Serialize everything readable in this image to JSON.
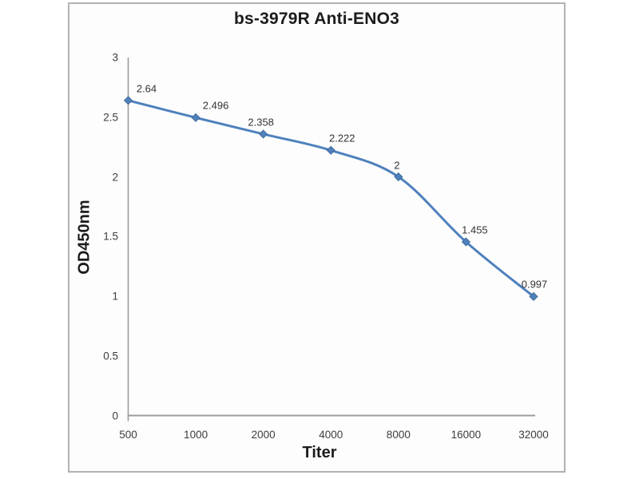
{
  "window": {
    "background": "#ffffff",
    "frame_border_color": "#b2b2b2"
  },
  "chart_data": {
    "type": "line",
    "title": "bs-3979R Anti-ENO3",
    "xlabel": "Titer",
    "ylabel": "OD450nm",
    "categories": [
      "500",
      "1000",
      "2000",
      "4000",
      "8000",
      "16000",
      "32000"
    ],
    "series": [
      {
        "name": "OD450nm",
        "values": [
          2.64,
          2.496,
          2.358,
          2.222,
          2,
          1.455,
          0.997
        ],
        "point_labels": [
          "2.64",
          "2.496",
          "2.358",
          "2.222",
          "2",
          "1.455",
          "0.997"
        ],
        "color": "#4f81bd",
        "marker": "diamond",
        "smooth": true
      }
    ],
    "y_tick_labels": [
      "3",
      "2.5",
      "2",
      "1.5",
      "1",
      "0.5",
      "0"
    ],
    "y_tick_values": [
      3,
      2.5,
      2,
      1.5,
      1,
      0.5,
      0
    ],
    "ylim": [
      0,
      3
    ],
    "grid": false,
    "legend_position": "none",
    "axis_color": "#9c9c9c",
    "tick_text_color": "#3d3d3d",
    "data_label_color": "#333333"
  }
}
